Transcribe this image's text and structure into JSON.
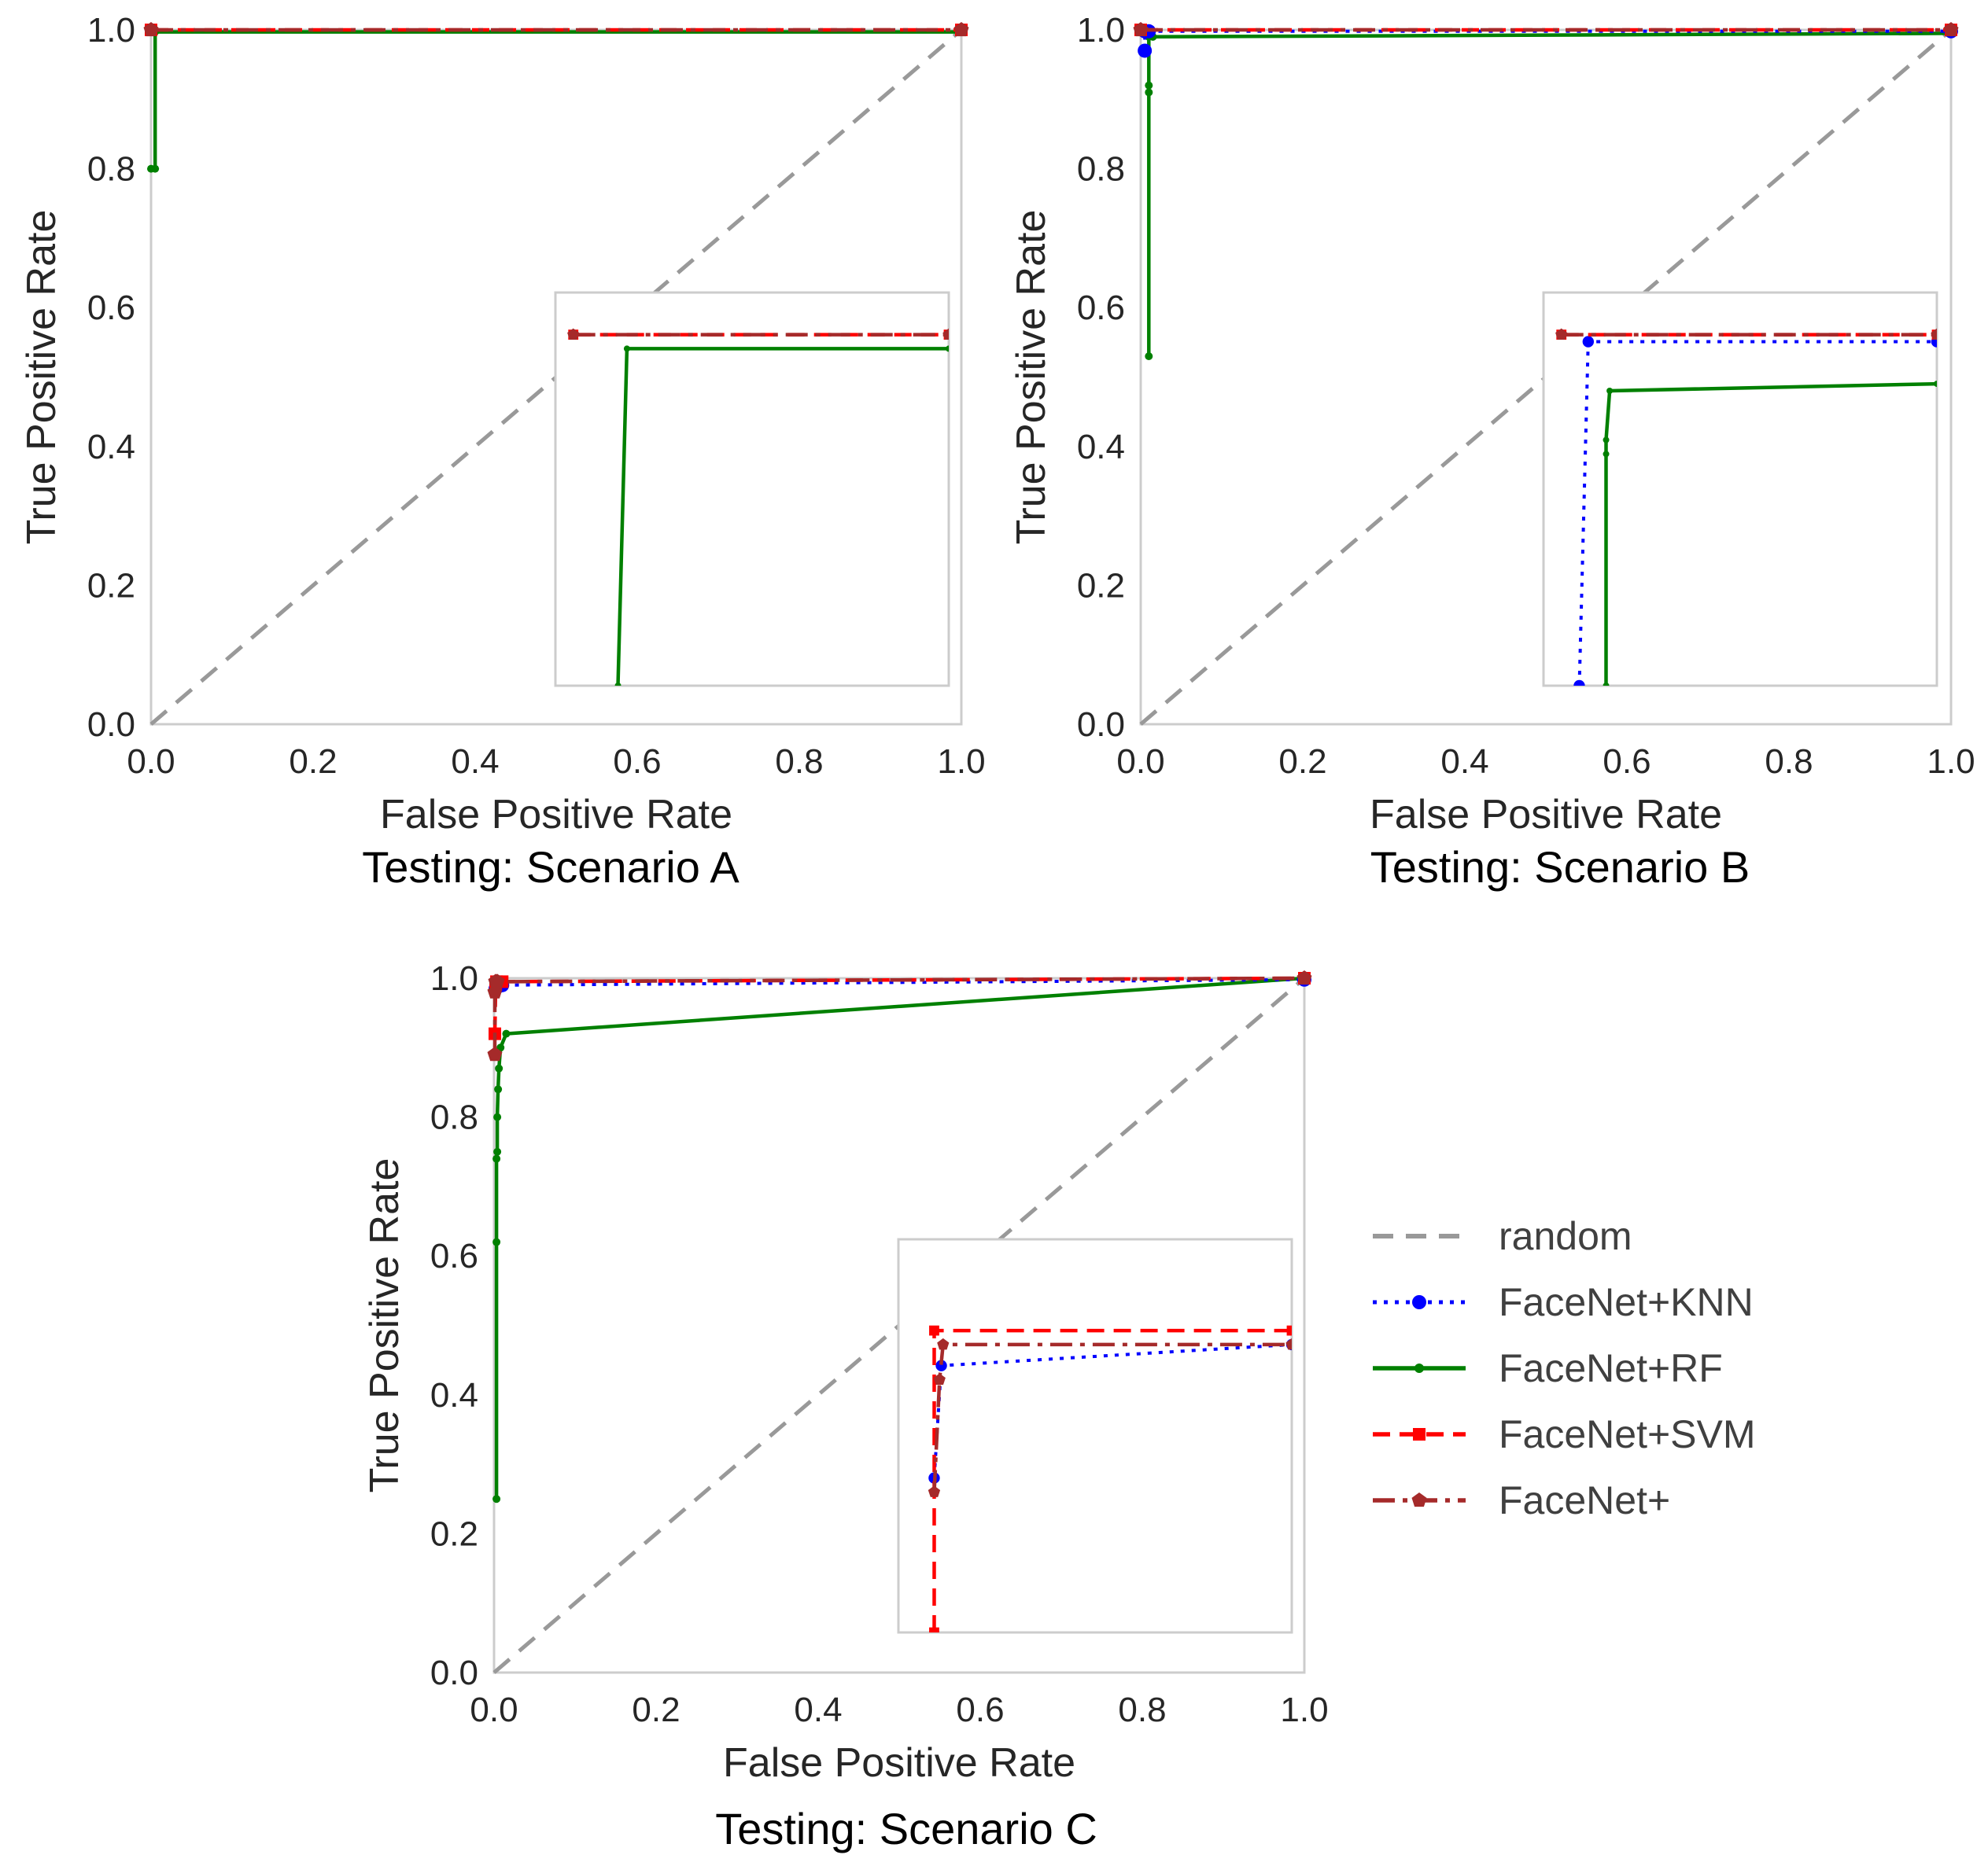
{
  "colors": {
    "random": "#999999",
    "FaceNet+KNN": "#0000ff",
    "FaceNet+RF": "#008000",
    "FaceNet+SVM": "#ff0000",
    "FaceNet+": "#a52a2a",
    "frame": "#cccccc",
    "text": "#262626"
  },
  "legend": {
    "items": [
      {
        "label": "random",
        "key": "random"
      },
      {
        "label": "FaceNet+KNN",
        "key": "FaceNet+KNN"
      },
      {
        "label": "FaceNet+RF",
        "key": "FaceNet+RF"
      },
      {
        "label": "FaceNet+SVM",
        "key": "FaceNet+SVM"
      },
      {
        "label": "FaceNet+",
        "key": "FaceNet+"
      }
    ]
  },
  "chart_data": [
    {
      "type": "line",
      "panel": "A",
      "caption": "Testing: Scenario A",
      "xlabel": "False Positive Rate",
      "ylabel": "True Positive Rate",
      "xlim": [
        0,
        1
      ],
      "ylim": [
        0,
        1
      ],
      "xticks": [
        "0.0",
        "0.2",
        "0.4",
        "0.6",
        "0.8",
        "1.0"
      ],
      "yticks": [
        "0.0",
        "0.2",
        "0.4",
        "0.6",
        "0.8",
        "1.0"
      ],
      "grid": false,
      "series": [
        {
          "name": "random",
          "x": [
            0,
            1
          ],
          "y": [
            0,
            1
          ]
        },
        {
          "name": "FaceNet+RF",
          "x": [
            0,
            0.005,
            0.005,
            1
          ],
          "y": [
            0.8,
            0.8,
            0.997,
            0.997
          ]
        },
        {
          "name": "FaceNet+SVM",
          "x": [
            0,
            1
          ],
          "y": [
            1.0,
            1.0
          ]
        },
        {
          "name": "FaceNet+",
          "x": [
            0,
            1
          ],
          "y": [
            1.0,
            1.0
          ]
        }
      ],
      "inset": {
        "xlim": [
          -0.002,
          0.02
        ],
        "ylim": [
          0.995,
          1.0006
        ],
        "series": [
          {
            "name": "FaceNet+RF",
            "x": [
              0.0015,
              0.002,
              0.02
            ],
            "y": [
              0.995,
              0.9998,
              0.9998
            ]
          },
          {
            "name": "FaceNet+SVM",
            "x": [
              -0.001,
              0.02
            ],
            "y": [
              1.0,
              1.0
            ]
          },
          {
            "name": "FaceNet+",
            "x": [
              -0.001,
              0.02
            ],
            "y": [
              1.0,
              1.0
            ]
          }
        ]
      }
    },
    {
      "type": "line",
      "panel": "B",
      "caption": "Testing: Scenario B",
      "xlabel": "False Positive Rate",
      "ylabel": "True Positive Rate",
      "xlim": [
        0,
        1
      ],
      "ylim": [
        0,
        1
      ],
      "xticks": [
        "0.0",
        "0.2",
        "0.4",
        "0.6",
        "0.8",
        "1.0"
      ],
      "yticks": [
        "0.0",
        "0.2",
        "0.4",
        "0.6",
        "0.8",
        "1.0"
      ],
      "grid": false,
      "series": [
        {
          "name": "random",
          "x": [
            0,
            1
          ],
          "y": [
            0,
            1
          ]
        },
        {
          "name": "FaceNet+KNN",
          "x": [
            0.005,
            0.005,
            0.01,
            1
          ],
          "y": [
            0.97,
            0.998,
            0.998,
            0.998
          ]
        },
        {
          "name": "FaceNet+RF",
          "x": [
            0.01,
            0.01,
            0.01,
            0.01,
            0.015,
            1
          ],
          "y": [
            0.53,
            0.91,
            0.92,
            0.99,
            0.99,
            0.995
          ]
        },
        {
          "name": "FaceNet+SVM",
          "x": [
            0,
            1
          ],
          "y": [
            1.0,
            1.0
          ]
        },
        {
          "name": "FaceNet+",
          "x": [
            0,
            1
          ],
          "y": [
            1.0,
            1.0
          ]
        }
      ],
      "inset": {
        "xlim": [
          -0.002,
          0.02
        ],
        "ylim": [
          0.995,
          1.0006
        ],
        "series": [
          {
            "name": "FaceNet+KNN",
            "x": [
              0.0,
              0.0005,
              0.02
            ],
            "y": [
              0.995,
              0.9999,
              0.9999
            ]
          },
          {
            "name": "FaceNet+RF",
            "x": [
              0.0015,
              0.0015,
              0.0015,
              0.0017,
              0.02
            ],
            "y": [
              0.995,
              0.9983,
              0.9985,
              0.9992,
              0.9993
            ]
          },
          {
            "name": "FaceNet+SVM",
            "x": [
              -0.001,
              0.02
            ],
            "y": [
              1.0,
              1.0
            ]
          },
          {
            "name": "FaceNet+",
            "x": [
              -0.001,
              0.02
            ],
            "y": [
              1.0,
              1.0
            ]
          }
        ]
      }
    },
    {
      "type": "line",
      "panel": "C",
      "caption": "Testing: Scenario C",
      "xlabel": "False Positive Rate",
      "ylabel": "True Positive Rate",
      "xlim": [
        0,
        1
      ],
      "ylim": [
        0,
        1
      ],
      "xticks": [
        "0.0",
        "0.2",
        "0.4",
        "0.6",
        "0.8",
        "1.0"
      ],
      "yticks": [
        "0.0",
        "0.2",
        "0.4",
        "0.6",
        "0.8",
        "1.0"
      ],
      "grid": false,
      "series": [
        {
          "name": "random",
          "x": [
            0,
            1
          ],
          "y": [
            0,
            1
          ]
        },
        {
          "name": "FaceNet+KNN",
          "x": [
            0.002,
            0.003,
            0.01,
            1
          ],
          "y": [
            0.985,
            0.99,
            0.99,
            0.998
          ]
        },
        {
          "name": "FaceNet+RF",
          "x": [
            0.003,
            0.003,
            0.003,
            0.004,
            0.004,
            0.005,
            0.006,
            0.008,
            0.015,
            1
          ],
          "y": [
            0.25,
            0.62,
            0.74,
            0.75,
            0.8,
            0.84,
            0.87,
            0.9,
            0.92,
            1.0
          ]
        },
        {
          "name": "FaceNet+SVM",
          "x": [
            0.001,
            0.002,
            0.003,
            0.01,
            1
          ],
          "y": [
            0.92,
            0.99,
            0.995,
            0.995,
            1.0
          ]
        },
        {
          "name": "FaceNet+",
          "x": [
            0.001,
            0.001,
            0.002,
            0.004,
            1
          ],
          "y": [
            0.89,
            0.98,
            0.995,
            0.995,
            1.0
          ]
        }
      ],
      "inset": {
        "xlim": [
          -0.002,
          0.02
        ],
        "ylim": [
          0.995,
          1.0006
        ],
        "series": [
          {
            "name": "FaceNet+KNN",
            "x": [
              0.0,
              0.0004,
              0.02
            ],
            "y": [
              0.9972,
              0.9988,
              0.9991
            ]
          },
          {
            "name": "FaceNet+SVM",
            "x": [
              0.0,
              0.0,
              0.02
            ],
            "y": [
              0.995,
              0.9993,
              0.9993
            ]
          },
          {
            "name": "FaceNet+",
            "x": [
              0.0,
              0.0003,
              0.0005,
              0.02
            ],
            "y": [
              0.997,
              0.9986,
              0.9991,
              0.9991
            ]
          }
        ]
      }
    }
  ]
}
